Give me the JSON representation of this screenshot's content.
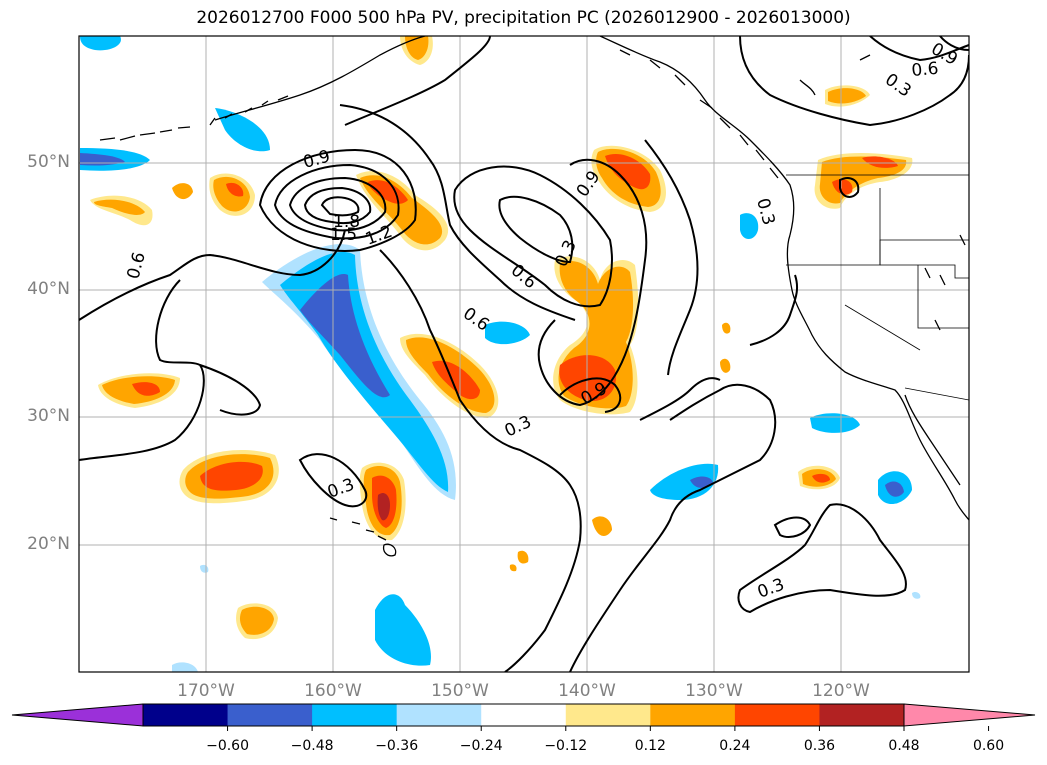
{
  "title": "2026012700 F000 500 hPa PV, precipitation PC (2026012900 - 2026013000)",
  "map": {
    "lat_labels": [
      "50°N",
      "40°N",
      "30°N",
      "20°N"
    ],
    "lon_labels": [
      "170°W",
      "160°W",
      "150°W",
      "140°W",
      "130°W",
      "120°W"
    ],
    "extent": {
      "lon_min": -180,
      "lon_max": -110,
      "lat_min": 10,
      "lat_max": 60
    },
    "contour_labels": [
      "0.9",
      "1.8",
      "1.5",
      "1.2",
      "0.9",
      "0.3",
      "0.6",
      "0.6",
      "0.9",
      "0.6",
      "0.3",
      "0.3",
      "0.3",
      "0.6",
      "0.3",
      "0.3",
      "0.9"
    ],
    "colors": {
      "contour": "#000000",
      "grid": "#b0b0b0",
      "coast": "#000000"
    }
  },
  "colorbar": {
    "ticks": [
      "−0.60",
      "−0.48",
      "−0.36",
      "−0.24",
      "−0.12",
      "0.12",
      "0.24",
      "0.36",
      "0.48",
      "0.60"
    ],
    "colors": [
      "#9b30d9",
      "#00008b",
      "#3a5fcd",
      "#00bfff",
      "#b0e2ff",
      "#ffffff",
      "#ffe88c",
      "#ffa500",
      "#ff4500",
      "#b22222",
      "#ff88aa"
    ],
    "extend": "both"
  }
}
